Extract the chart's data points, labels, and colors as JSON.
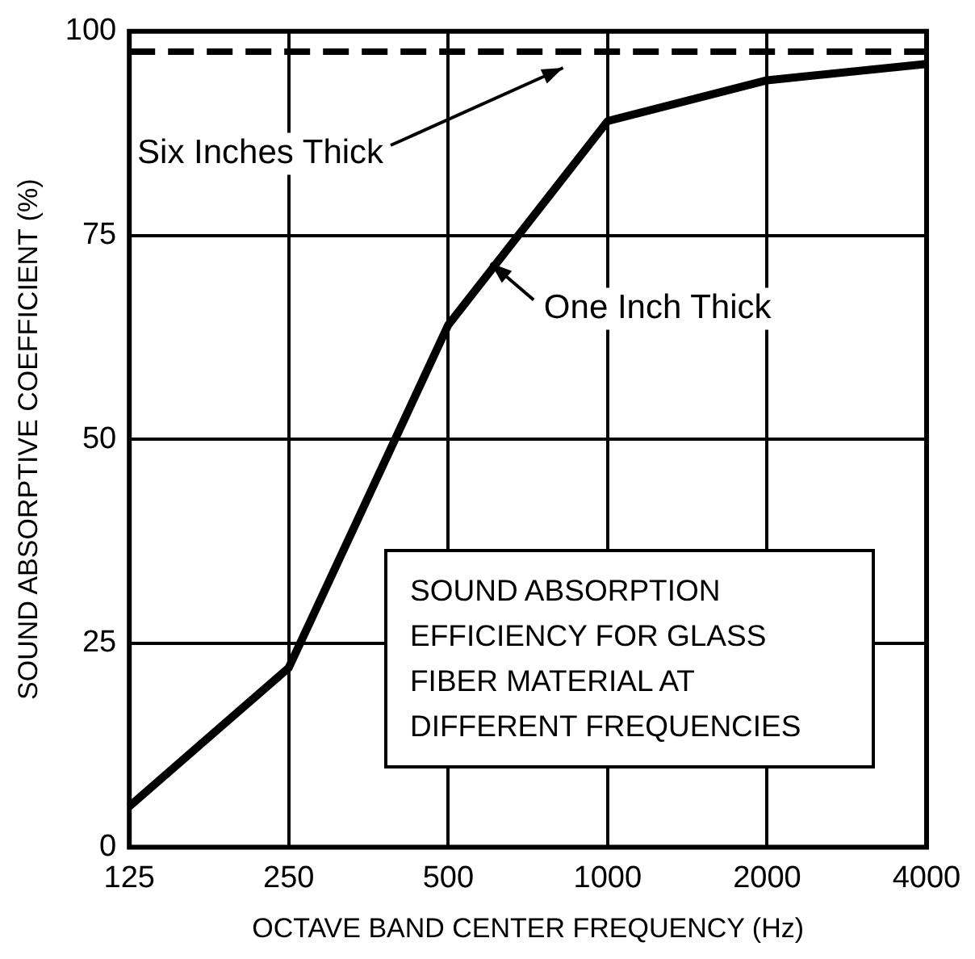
{
  "chart_data": {
    "type": "line",
    "xlabel": "OCTAVE BAND CENTER FREQUENCY (Hz)",
    "ylabel": "SOUND ABSORPTIVE COEFFICIENT (%)",
    "categories": [
      "125",
      "250",
      "500",
      "1000",
      "2000",
      "4000"
    ],
    "series": [
      {
        "name": "Six Inches Thick",
        "color": "#000000",
        "line_style": "dashed",
        "values": [
          97.5,
          97.5,
          97.5,
          97.5,
          97.5,
          97.5
        ]
      },
      {
        "name": "One Inch Thick",
        "color": "#000000",
        "line_style": "solid",
        "values": [
          5,
          22,
          64,
          89,
          94,
          96
        ]
      }
    ],
    "ylim": [
      0,
      100
    ],
    "yticks": [
      0,
      25,
      50,
      75,
      100
    ],
    "grid": true,
    "marker": "none",
    "annotations": [
      "SOUND ABSORPTION EFFICIENCY FOR GLASS FIBER MATERIAL AT DIFFERENT FREQUENCIES"
    ]
  }
}
